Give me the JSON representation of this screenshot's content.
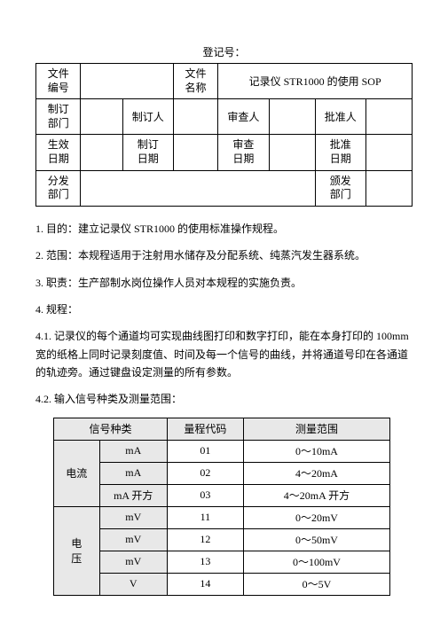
{
  "reg_label": "登记号：",
  "header_table": {
    "r1c1": "文件\n编号",
    "r1c2": "",
    "r1c3": "文件\n名称",
    "r1c4": "记录仪 STR1000 的使用 SOP",
    "r2c1": "制订\n部门",
    "r2c2": "",
    "r2c3": "制订人",
    "r2c4": "",
    "r2c5": "审查人",
    "r2c6": "",
    "r2c7": "批准人",
    "r2c8": "",
    "r3c1": "生效\n日期",
    "r3c2": "",
    "r3c3": "制订\n日期",
    "r3c4": "",
    "r3c5": "审查\n日期",
    "r3c6": "",
    "r3c7": "批准\n日期",
    "r3c8": "",
    "r4c1": "分发\n部门",
    "r4c2": "",
    "r4c3": "颁发\n部门",
    "r4c4": ""
  },
  "paras": {
    "p1": "1. 目的：建立记录仪 STR1000 的使用标准操作规程。",
    "p2": "2. 范围：本规程适用于注射用水储存及分配系统、纯蒸汽发生器系统。",
    "p3": "3. 职责：生产部制水岗位操作人员对本规程的实施负责。",
    "p4": "4. 规程：",
    "p41": "4.1. 记录仪的每个通道均可实现曲线图打印和数字打印，能在本身打印的 100mm 宽的纸格上同时记录刻度值、时间及每一个信号的曲线，并将通道号印在各通道的轨迹旁。通过键盘设定测量的所有参数。",
    "p42": "4.2. 输入信号种类及测量范围："
  },
  "signal_table": {
    "headers": [
      "信号种类",
      "量程代码",
      "测量范围"
    ],
    "group1_label": "电流",
    "group2_label": "电\n压",
    "rows": [
      {
        "unit": "mA",
        "code": "01",
        "range": "0～10mA"
      },
      {
        "unit": "mA",
        "code": "02",
        "range": "4～20mA"
      },
      {
        "unit": "mA 开方",
        "code": "03",
        "range": "4～20mA 开方"
      },
      {
        "unit": "mV",
        "code": "11",
        "range": "0～20mV"
      },
      {
        "unit": "mV",
        "code": "12",
        "range": "0～50mV"
      },
      {
        "unit": "mV",
        "code": "13",
        "range": "0～100mV"
      },
      {
        "unit": "V",
        "code": "14",
        "range": "0～5V"
      }
    ]
  }
}
